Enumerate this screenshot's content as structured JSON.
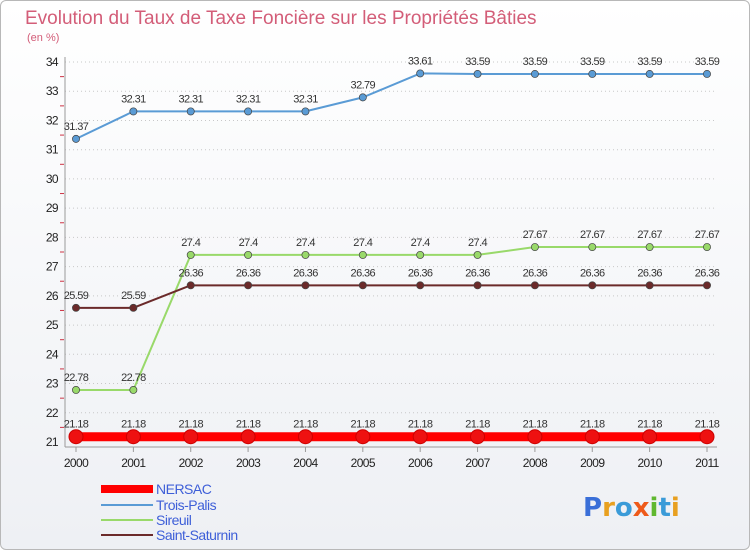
{
  "chart_data": {
    "type": "line",
    "title": "Evolution du Taux de Taxe Foncière sur les Propriétés Bâties",
    "subtitle": "(en %)",
    "x": [
      "2000",
      "2001",
      "2002",
      "2003",
      "2004",
      "2005",
      "2006",
      "2007",
      "2008",
      "2009",
      "2010",
      "2011"
    ],
    "ylim": [
      21,
      34
    ],
    "yticks": [
      "21",
      "22",
      "23",
      "24",
      "25",
      "26",
      "27",
      "28",
      "29",
      "30",
      "31",
      "32",
      "33",
      "34"
    ],
    "grid": "horizontal dotted",
    "legend_position": "bottom-left",
    "series": [
      {
        "name": "Trois-Palis",
        "color": "#5a9bd5",
        "values": [
          31.37,
          32.31,
          32.31,
          32.31,
          32.31,
          32.79,
          33.61,
          33.59,
          33.59,
          33.59,
          33.59,
          33.59
        ],
        "labels": [
          "31.37",
          "32.31",
          "32.31",
          "32.31",
          "32.31",
          "32.79",
          "33.61",
          "33.59",
          "33.59",
          "33.59",
          "33.59",
          "33.59"
        ]
      },
      {
        "name": "Sireuil",
        "color": "#99d96a",
        "values": [
          22.78,
          22.78,
          27.4,
          27.4,
          27.4,
          27.4,
          27.4,
          27.4,
          27.67,
          27.67,
          27.67,
          27.67
        ],
        "labels": [
          "22.78",
          "22.78",
          "27.4",
          "27.4",
          "27.4",
          "27.4",
          "27.4",
          "27.4",
          "27.67",
          "27.67",
          "27.67",
          "27.67"
        ]
      },
      {
        "name": "Saint-Saturnin",
        "color": "#6b2a2a",
        "values": [
          25.59,
          25.59,
          26.36,
          26.36,
          26.36,
          26.36,
          26.36,
          26.36,
          26.36,
          26.36,
          26.36,
          26.36
        ],
        "labels": [
          "25.59",
          "25.59",
          "26.36",
          "26.36",
          "26.36",
          "26.36",
          "26.36",
          "26.36",
          "26.36",
          "26.36",
          "26.36",
          "26.36"
        ]
      },
      {
        "name": "NERSAC",
        "color": "#ff0000",
        "values": [
          21.18,
          21.18,
          21.18,
          21.18,
          21.18,
          21.18,
          21.18,
          21.18,
          21.18,
          21.18,
          21.18,
          21.18
        ],
        "labels": [
          "21.18",
          "21.18",
          "21.18",
          "21.18",
          "21.18",
          "21.18",
          "21.18",
          "21.18",
          "21.18",
          "21.18",
          "21.18",
          "21.18"
        ]
      }
    ],
    "legend": [
      "NERSAC",
      "Trois-Palis",
      "Sireuil",
      "Saint-Saturnin"
    ]
  },
  "logo": {
    "letters": [
      "P",
      "r",
      "o",
      "x",
      "i",
      "t",
      "i"
    ],
    "colors": [
      "#3a6fd8",
      "#e8a020",
      "#3a9bd8",
      "#ee5a1a",
      "#60b830",
      "#3a9bd8",
      "#e8a020"
    ]
  }
}
